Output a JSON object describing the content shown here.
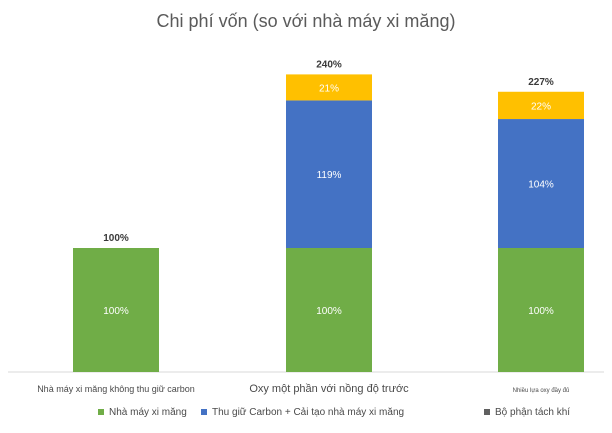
{
  "chart_data": {
    "type": "bar",
    "stacked": true,
    "title": "Chi phí vốn (so với nhà máy xi măng)",
    "categories": [
      "Nhà máy xi măng không thu giữ carbon",
      "Oxy một phần với nồng độ trước",
      "Nhiều lựa oxy đầy đủ"
    ],
    "series": [
      {
        "name": "Nhà máy xi măng",
        "color": "#70ad47",
        "values": [
          100,
          100,
          100
        ],
        "labels": [
          "100%",
          "100%",
          "100%"
        ]
      },
      {
        "name": "Thu giữ Carbon + Cải tạo nhà máy xi măng",
        "color": "#4472c4",
        "values": [
          0,
          119,
          104
        ],
        "labels": [
          "",
          "119%",
          "104%"
        ]
      },
      {
        "name": "Bộ phận tách khí",
        "color": "#ffc000",
        "values": [
          0,
          21,
          22
        ],
        "labels": [
          "",
          "21%",
          "22%"
        ]
      }
    ],
    "totals": [
      "100%",
      "240%",
      "227%"
    ],
    "ylim": [
      0,
      260
    ],
    "grid": false,
    "legend_position": "bottom",
    "legend_marker_colors": [
      "#70ad47",
      "#4472c4",
      "#606060"
    ]
  }
}
